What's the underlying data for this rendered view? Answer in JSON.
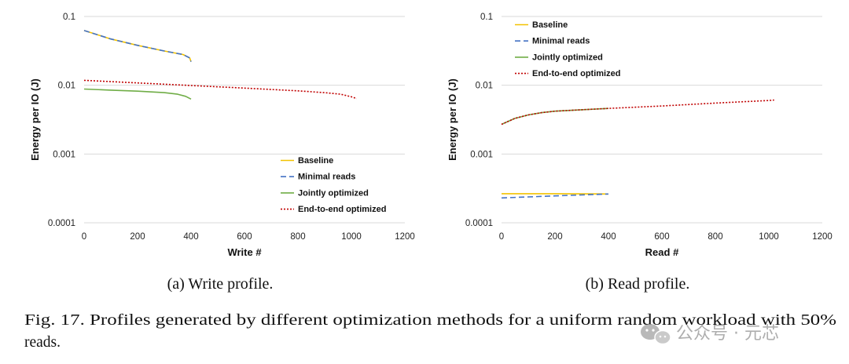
{
  "chart_data": [
    {
      "type": "line",
      "subcaption": "(a) Write profile.",
      "xlabel": "Write #",
      "ylabel": "Energy per IO (J)",
      "xlim": [
        0,
        1200
      ],
      "xticks": [
        0,
        200,
        400,
        600,
        800,
        1000,
        1200
      ],
      "ylim": [
        0.0001,
        0.1
      ],
      "yscale": "log",
      "yticks": [
        "0.0001",
        "0.001",
        "0.01",
        "0.1"
      ],
      "grid": "horizontal",
      "legend_position": "bottom-right",
      "series": [
        {
          "name": "Baseline",
          "color": "#f2c200",
          "style": "solid",
          "points": [
            [
              0,
              0.0625
            ],
            [
              100,
              0.047
            ],
            [
              200,
              0.038
            ],
            [
              300,
              0.0315
            ],
            [
              370,
              0.028
            ],
            [
              395,
              0.025
            ],
            [
              400,
              0.022
            ]
          ]
        },
        {
          "name": "Minimal reads",
          "color": "#4472c4",
          "style": "dashed",
          "points": [
            [
              0,
              0.0625
            ],
            [
              100,
              0.047
            ],
            [
              200,
              0.038
            ],
            [
              300,
              0.0315
            ],
            [
              370,
              0.028
            ],
            [
              395,
              0.025
            ],
            [
              400,
              0.022
            ]
          ]
        },
        {
          "name": "Jointly optimized",
          "color": "#70ad47",
          "style": "solid",
          "points": [
            [
              0,
              0.0088
            ],
            [
              100,
              0.0085
            ],
            [
              200,
              0.0082
            ],
            [
              300,
              0.0078
            ],
            [
              350,
              0.0074
            ],
            [
              380,
              0.0069
            ],
            [
              400,
              0.0063
            ]
          ]
        },
        {
          "name": "End-to-end optimized",
          "color": "#c00000",
          "style": "dotted",
          "points": [
            [
              0,
              0.0118
            ],
            [
              200,
              0.0108
            ],
            [
              400,
              0.0099
            ],
            [
              600,
              0.0091
            ],
            [
              800,
              0.0083
            ],
            [
              900,
              0.0078
            ],
            [
              960,
              0.0074
            ],
            [
              1000,
              0.0068
            ],
            [
              1020,
              0.0064
            ]
          ]
        }
      ]
    },
    {
      "type": "line",
      "subcaption": "(b) Read profile.",
      "xlabel": "Read #",
      "ylabel": "Energy per IO (J)",
      "xlim": [
        0,
        1200
      ],
      "xticks": [
        0,
        200,
        400,
        600,
        800,
        1000,
        1200
      ],
      "ylim": [
        0.0001,
        0.1
      ],
      "yscale": "log",
      "yticks": [
        "0.0001",
        "0.001",
        "0.01",
        "0.1"
      ],
      "grid": "horizontal",
      "legend_position": "top-left",
      "series": [
        {
          "name": "Baseline",
          "color": "#f2c200",
          "style": "solid",
          "points": [
            [
              0,
              0.000265
            ],
            [
              200,
              0.000265
            ],
            [
              400,
              0.000262
            ]
          ]
        },
        {
          "name": "Minimal reads",
          "color": "#4472c4",
          "style": "dashed",
          "points": [
            [
              0,
              0.00023
            ],
            [
              100,
              0.000238
            ],
            [
              200,
              0.000246
            ],
            [
              300,
              0.000254
            ],
            [
              400,
              0.000262
            ]
          ]
        },
        {
          "name": "Jointly optimized",
          "color": "#70ad47",
          "style": "solid",
          "points": [
            [
              0,
              0.0027
            ],
            [
              50,
              0.0033
            ],
            [
              100,
              0.0037
            ],
            [
              150,
              0.004
            ],
            [
              200,
              0.0042
            ],
            [
              300,
              0.0044
            ],
            [
              400,
              0.0046
            ]
          ]
        },
        {
          "name": "End-to-end optimized",
          "color": "#c00000",
          "style": "dotted",
          "points": [
            [
              0,
              0.0027
            ],
            [
              50,
              0.0033
            ],
            [
              100,
              0.0037
            ],
            [
              150,
              0.004
            ],
            [
              200,
              0.0042
            ],
            [
              300,
              0.0044
            ],
            [
              400,
              0.0046
            ],
            [
              600,
              0.005
            ],
            [
              800,
              0.0055
            ],
            [
              1000,
              0.006
            ],
            [
              1020,
              0.0061
            ]
          ]
        }
      ]
    }
  ],
  "caption": {
    "line1": "Fig. 17.  Profiles generated by different optimization methods for a uniform random workload with 50%",
    "line2": "reads."
  },
  "watermark": {
    "text": "公众号 · 元芯",
    "icon": "wechat-icon"
  }
}
